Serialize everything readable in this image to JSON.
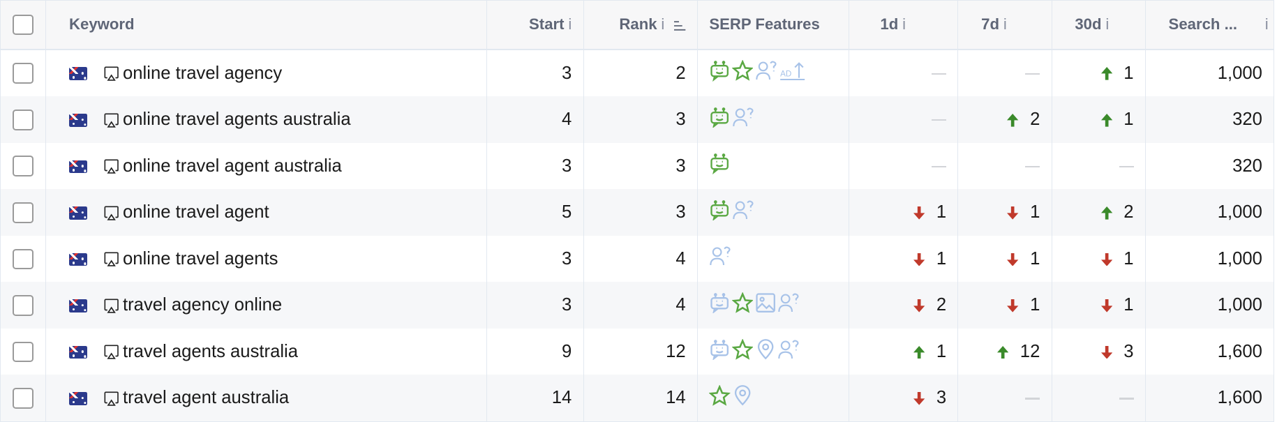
{
  "colors": {
    "green": "#5aa843",
    "light_blue": "#a7c2e8",
    "up": "#3a8a2a",
    "down": "#c0392b"
  },
  "header": {
    "keyword": "Keyword",
    "start": "Start",
    "rank": "Rank",
    "serp": "SERP Features",
    "d1": "1d",
    "d7": "7d",
    "d30": "30d",
    "search": "Search ...",
    "info": "i"
  },
  "rows": [
    {
      "keyword": "online travel agency",
      "start": "3",
      "rank": "2",
      "serp": [
        [
          "bot",
          "g"
        ],
        [
          "star",
          "g"
        ],
        [
          "people",
          "b"
        ],
        [
          "ad",
          "b"
        ]
      ],
      "d1": null,
      "d7": null,
      "d30": [
        "up",
        "1"
      ],
      "volume": "1,000"
    },
    {
      "keyword": "online travel agents australia",
      "start": "4",
      "rank": "3",
      "serp": [
        [
          "bot",
          "g"
        ],
        [
          "people",
          "b"
        ]
      ],
      "d1": null,
      "d7": [
        "up",
        "2"
      ],
      "d30": [
        "up",
        "1"
      ],
      "volume": "320"
    },
    {
      "keyword": "online travel agent australia",
      "start": "3",
      "rank": "3",
      "serp": [
        [
          "bot",
          "g"
        ]
      ],
      "d1": null,
      "d7": null,
      "d30": null,
      "volume": "320"
    },
    {
      "keyword": "online travel agent",
      "start": "5",
      "rank": "3",
      "serp": [
        [
          "bot",
          "g"
        ],
        [
          "people",
          "b"
        ]
      ],
      "d1": [
        "down",
        "1"
      ],
      "d7": [
        "down",
        "1"
      ],
      "d30": [
        "up",
        "2"
      ],
      "volume": "1,000"
    },
    {
      "keyword": "online travel agents",
      "start": "3",
      "rank": "4",
      "serp": [
        [
          "people",
          "b"
        ]
      ],
      "d1": [
        "down",
        "1"
      ],
      "d7": [
        "down",
        "1"
      ],
      "d30": [
        "down",
        "1"
      ],
      "volume": "1,000"
    },
    {
      "keyword": "travel agency online",
      "start": "3",
      "rank": "4",
      "serp": [
        [
          "bot",
          "b"
        ],
        [
          "star",
          "g"
        ],
        [
          "image",
          "b"
        ],
        [
          "people",
          "b"
        ]
      ],
      "d1": [
        "down",
        "2"
      ],
      "d7": [
        "down",
        "1"
      ],
      "d30": [
        "down",
        "1"
      ],
      "volume": "1,000"
    },
    {
      "keyword": "travel agents australia",
      "start": "9",
      "rank": "12",
      "serp": [
        [
          "bot",
          "b"
        ],
        [
          "star",
          "g"
        ],
        [
          "pin",
          "b"
        ],
        [
          "people",
          "b"
        ]
      ],
      "d1": [
        "up",
        "1"
      ],
      "d7": [
        "up",
        "12"
      ],
      "d30": [
        "down",
        "3"
      ],
      "volume": "1,600"
    },
    {
      "keyword": "travel agent australia",
      "start": "14",
      "rank": "14",
      "serp": [
        [
          "star",
          "g"
        ],
        [
          "pin",
          "b"
        ]
      ],
      "d1": [
        "down",
        "3"
      ],
      "d7": null,
      "d30": null,
      "volume": "1,600"
    }
  ]
}
